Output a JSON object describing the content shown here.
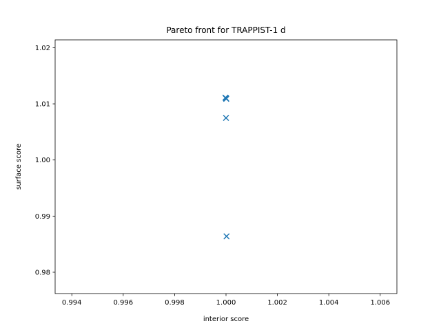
{
  "chart_data": {
    "type": "scatter",
    "title": "Pareto front for TRAPPIST-1 d",
    "xlabel": "interior score",
    "ylabel": "surface score",
    "xlim": [
      0.99335,
      1.00665
    ],
    "ylim": [
      0.9762,
      1.0214
    ],
    "grid": false,
    "legend": "none",
    "marker": "x",
    "color": "#1f77b4",
    "x_ticks": [
      0.994,
      0.996,
      0.998,
      1.0,
      1.002,
      1.004,
      1.006
    ],
    "x_tick_labels": [
      "0.994",
      "0.996",
      "0.998",
      "1.000",
      "1.002",
      "1.004",
      "1.006"
    ],
    "y_ticks": [
      0.98,
      0.99,
      1.0,
      1.01,
      1.02
    ],
    "y_tick_labels": [
      "0.98",
      "0.99",
      "1.00",
      "1.01",
      "1.02"
    ],
    "points": [
      {
        "x": 0.99998,
        "y": 1.0111
      },
      {
        "x": 1.0,
        "y": 1.011
      },
      {
        "x": 1.00001,
        "y": 1.0109
      },
      {
        "x": 1.0,
        "y": 1.0075
      },
      {
        "x": 1.00002,
        "y": 0.9864
      }
    ]
  }
}
